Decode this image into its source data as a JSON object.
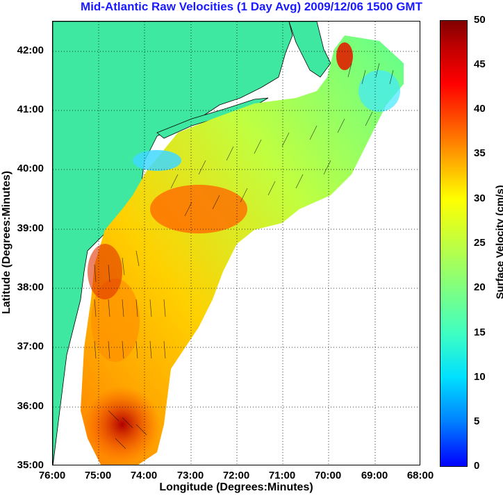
{
  "title": "Mid-Atlantic Raw Velocities (1 Day Avg) 2009/12/06 1500 GMT",
  "xaxis": {
    "label": "Longitude (Degrees:Minutes)",
    "ticks": [
      "76:00",
      "75:00",
      "74:00",
      "73:00",
      "72:00",
      "71:00",
      "70:00",
      "69:00",
      "68:00"
    ]
  },
  "yaxis": {
    "label": "Latitude (Degrees:Minutes)",
    "ticks": [
      "42:00",
      "41:00",
      "40:00",
      "39:00",
      "38:00",
      "37:00",
      "36:00",
      "35:00"
    ]
  },
  "colorbar": {
    "label": "Surface Velocity (cm/s)",
    "ticks": [
      "50",
      "45",
      "40",
      "35",
      "30",
      "25",
      "20",
      "15",
      "10",
      "5",
      "0"
    ],
    "range": [
      0,
      50
    ]
  },
  "colors": {
    "land": "#3ee8a0",
    "title": "#1a1aff",
    "coast": "#000000"
  },
  "map": {
    "lon_range": [
      -76,
      -68
    ],
    "lat_range": [
      35,
      42.5
    ],
    "grid": "dotted"
  }
}
